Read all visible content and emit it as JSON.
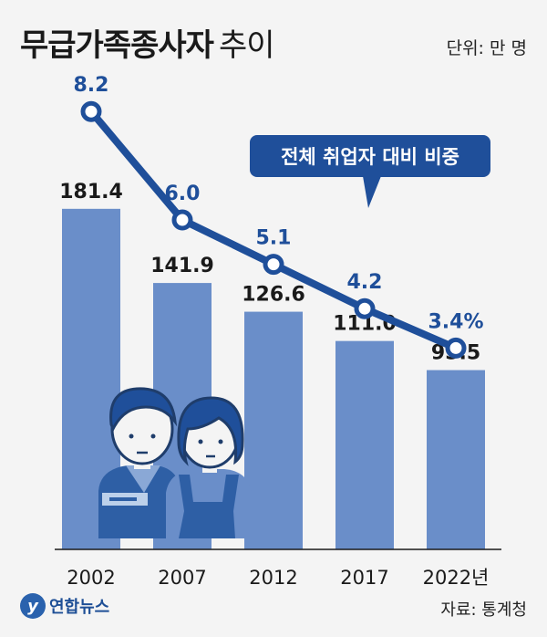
{
  "title": "무급가족종사자",
  "title_suffix": "추이",
  "unit_label": "단위: 만 명",
  "source": "자료: 통계청",
  "logo_text": "연합뉴스",
  "callout": "전체 취업자 대비 비중",
  "colors": {
    "bar": "#6a8ec9",
    "line": "#1f4f9a",
    "text": "#1a1a1a",
    "background": "#f4f4f4"
  },
  "chart_data": {
    "type": "bar",
    "categories": [
      "2002",
      "2007",
      "2012",
      "2017",
      "2022년"
    ],
    "series": [
      {
        "values": [
          181.4,
          141.9,
          126.6,
          111.0,
          95.5
        ]
      },
      {
        "type": "line",
        "values": [
          8.2,
          6.0,
          5.1,
          4.2,
          3.4
        ]
      }
    ],
    "bar_labels": [
      "181.4",
      "141.9",
      "126.6",
      "111.0",
      "95.5"
    ],
    "line_labels": [
      "8.2",
      "6.0",
      "5.1",
      "4.2",
      "3.4%"
    ],
    "ylim": [
      0,
      210
    ],
    "line_ylim": [
      0,
      10
    ]
  }
}
